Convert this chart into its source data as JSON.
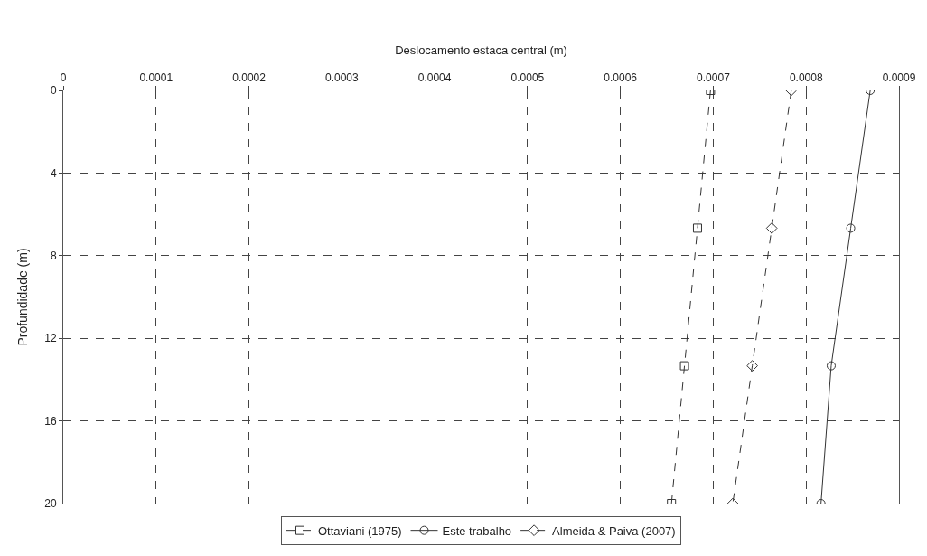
{
  "chart_data": {
    "type": "line",
    "xlabel": "Deslocamento estaca central (m)",
    "ylabel": "Profundidade (m)",
    "xlim": [
      0,
      0.0009
    ],
    "xticks": [
      0,
      0.0001,
      0.0002,
      0.0003,
      0.0004,
      0.0005,
      0.0006,
      0.0007,
      0.0008,
      0.0009
    ],
    "ylim": [
      20,
      0
    ],
    "yticks": [
      0,
      4,
      8,
      12,
      16,
      20
    ],
    "grid": true,
    "legend": "bottom",
    "series": [
      {
        "name": "Ottaviani (1975)",
        "color": "#333333",
        "marker": "square",
        "line_style": "dashed",
        "x": [
          0.000697,
          0.000683,
          0.000669,
          0.000655
        ],
        "values": [
          0,
          6.67,
          13.33,
          20
        ]
      },
      {
        "name": "Este trabalho",
        "color": "#333333",
        "marker": "circle",
        "line_style": "solid",
        "x": [
          0.000869,
          0.000848,
          0.000827,
          0.000816
        ],
        "values": [
          0,
          6.67,
          13.33,
          20
        ]
      },
      {
        "name": "Almeida & Paiva (2007)",
        "color": "#333333",
        "marker": "diamond",
        "line_style": "dashed",
        "x": [
          0.000784,
          0.000763,
          0.000742,
          0.000721
        ],
        "values": [
          0,
          6.67,
          13.33,
          20
        ]
      }
    ]
  }
}
